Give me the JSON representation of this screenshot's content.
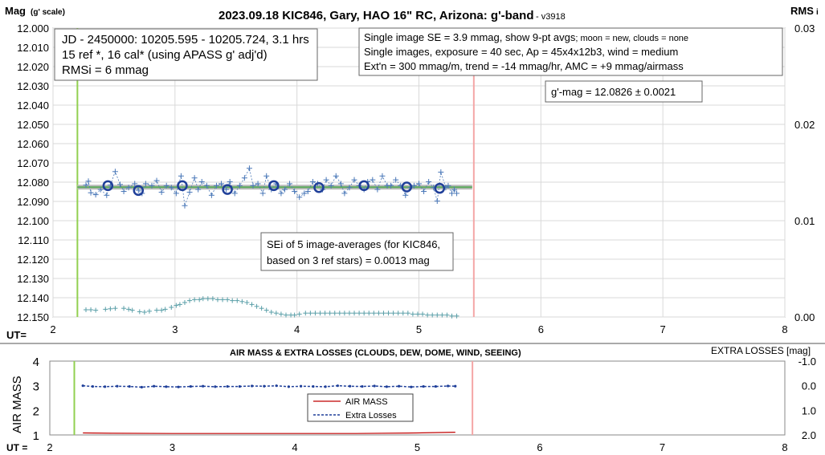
{
  "chart_data": [
    {
      "type": "scatter",
      "title": "2023.09.18 KIC846, Gary, HAO 16\" RC, Arizona: g'-band",
      "version": "- v3918",
      "ylabel": "Mag",
      "ylabel_suffix": "(g' scale)",
      "y2label": "RMS",
      "y2label_suffix": "i",
      "xlabel": "UT=",
      "xlim": [
        2,
        8
      ],
      "ylim": [
        12.0,
        12.15
      ],
      "y_inverted": true,
      "x_ticks": [
        2,
        3,
        4,
        5,
        6,
        7,
        8
      ],
      "y_ticks": [
        "12.000",
        "12.010",
        "12.020",
        "12.030",
        "12.040",
        "12.050",
        "12.060",
        "12.070",
        "12.080",
        "12.090",
        "12.100",
        "12.110",
        "12.120",
        "12.130",
        "12.140",
        "12.150"
      ],
      "y2lim": [
        0.0,
        0.03
      ],
      "y2_ticks": [
        "0.03",
        "0.02",
        "0.01",
        "0.00"
      ],
      "grid": true,
      "ut_start": 2.2,
      "ut_end": 5.45,
      "fit_mag": 12.0826,
      "series": [
        {
          "x": [
            2.27,
            2.29,
            2.31,
            2.35,
            2.39,
            2.44,
            2.47,
            2.51,
            2.55,
            2.58,
            2.62,
            2.67,
            2.7,
            2.73,
            2.76,
            2.81,
            2.85,
            2.89,
            2.93,
            2.97,
            3.01,
            3.05,
            3.08,
            3.12,
            3.16,
            3.19,
            3.22,
            3.26,
            3.3,
            3.34,
            3.38,
            3.42,
            3.45,
            3.49,
            3.53,
            3.57,
            3.61,
            3.64,
            3.68,
            3.72,
            3.75,
            3.79,
            3.83,
            3.87,
            3.9,
            3.94,
            3.98,
            4.02,
            4.06,
            4.09,
            4.13,
            4.17,
            4.21,
            4.24,
            4.28,
            4.32,
            4.36,
            4.39,
            4.43,
            4.47,
            4.51,
            4.55,
            4.58,
            4.62,
            4.66,
            4.7,
            4.74,
            4.77,
            4.81,
            4.85,
            4.89,
            4.93,
            4.96,
            5.0,
            5.04,
            5.08,
            5.12,
            5.15,
            5.18,
            5.22,
            5.24,
            5.27,
            5.29,
            5.31
          ],
          "values": [
            12.0815,
            12.0795,
            12.0855,
            12.0865,
            12.0838,
            12.0868,
            12.0815,
            12.0745,
            12.0812,
            12.0848,
            12.0828,
            12.0808,
            12.0842,
            12.0858,
            12.0808,
            12.0818,
            12.0792,
            12.0852,
            12.0818,
            12.0828,
            12.0858,
            12.0768,
            12.0922,
            12.0852,
            12.0778,
            12.0838,
            12.0798,
            12.0818,
            12.0868,
            12.0818,
            12.0808,
            12.0838,
            12.0798,
            12.0858,
            12.0818,
            12.0778,
            12.0728,
            12.0818,
            12.0808,
            12.0858,
            12.0768,
            12.0838,
            12.0808,
            12.0858,
            12.0838,
            12.0808,
            12.0848,
            12.0878,
            12.0858,
            12.0848,
            12.0798,
            12.0808,
            12.0838,
            12.0788,
            12.0818,
            12.0768,
            12.0808,
            12.0858,
            12.0828,
            12.0788,
            12.0818,
            12.0838,
            12.0798,
            12.0788,
            12.0838,
            12.0768,
            12.0818,
            12.0818,
            12.0788,
            12.0818,
            12.0868,
            12.0828,
            12.0818,
            12.0808,
            12.0848,
            12.0798,
            12.0828,
            12.0898,
            12.0748,
            12.0828,
            12.0818,
            12.0858,
            12.0838,
            12.0858
          ]
        },
        {
          "x": [
            2.45,
            2.7,
            3.06,
            3.43,
            3.81,
            4.18,
            4.55,
            4.9,
            5.17
          ],
          "values": [
            12.0818,
            12.0843,
            12.0818,
            12.0838,
            12.0818,
            12.0828,
            12.0818,
            12.0825,
            12.0832
          ]
        },
        {
          "x": [
            2.27,
            2.31,
            2.35,
            2.43,
            2.47,
            2.51,
            2.58,
            2.62,
            2.65,
            2.71,
            2.75,
            2.79,
            2.85,
            2.89,
            2.92,
            2.97,
            3.01,
            3.04,
            3.08,
            3.12,
            3.16,
            3.2,
            3.23,
            3.27,
            3.31,
            3.35,
            3.39,
            3.43,
            3.47,
            3.51,
            3.55,
            3.59,
            3.63,
            3.67,
            3.71,
            3.75,
            3.79,
            3.83,
            3.87,
            3.91,
            3.95,
            3.98,
            4.02,
            4.07,
            4.11,
            4.15,
            4.19,
            4.23,
            4.27,
            4.31,
            4.35,
            4.39,
            4.43,
            4.47,
            4.51,
            4.55,
            4.59,
            4.63,
            4.67,
            4.71,
            4.75,
            4.79,
            4.83,
            4.87,
            4.91,
            4.95,
            4.99,
            5.03,
            5.07,
            5.11,
            5.15,
            5.19,
            5.23,
            5.27,
            5.31
          ],
          "values": [
            0.00075,
            0.00075,
            0.0007,
            0.0008,
            0.00085,
            0.0009,
            0.0009,
            0.0008,
            0.0007,
            0.00055,
            0.0005,
            0.0006,
            0.0007,
            0.0007,
            0.0008,
            0.001,
            0.0012,
            0.0013,
            0.0015,
            0.0017,
            0.0018,
            0.0018,
            0.0019,
            0.0019,
            0.0019,
            0.0018,
            0.0018,
            0.0018,
            0.0017,
            0.0017,
            0.0016,
            0.0015,
            0.0013,
            0.0011,
            0.0009,
            0.0007,
            0.0005,
            0.0004,
            0.0003,
            0.0002,
            0.0002,
            0.0002,
            0.0003,
            0.0004,
            0.0004,
            0.0004,
            0.0004,
            0.0004,
            0.0004,
            0.0004,
            0.0004,
            0.0004,
            0.0004,
            0.0004,
            0.0004,
            0.0004,
            0.0004,
            0.0004,
            0.0004,
            0.0004,
            0.0004,
            0.0004,
            0.0004,
            0.0004,
            0.0004,
            0.0003,
            0.0003,
            0.0003,
            0.0002,
            0.0002,
            0.0002,
            0.0002,
            0.0002,
            0.0001,
            0.0001
          ]
        }
      ],
      "annotations": {
        "box1": [
          "JD - 2450000: 10205.595 - 10205.724, 3.1 hrs",
          "15 ref *, 16 cal* (using APASS g' adj'd)",
          "RMSi = 6 mmag"
        ],
        "box2_line1": "Single image SE = 3.9 mmag, show  9-pt avgs",
        "box2_line1_small": "; moon = new, clouds = none",
        "box2_line2": "Single images, exposure = 40 sec, Ap = 45x4x12b3, wind = medium",
        "box2_line3": "Ext'n = 300 mmag/m, trend = -14 mmag/hr, AMC = +9 mmag/airmass",
        "box3": "g'-mag = 12.0826 ± 0.0021",
        "box4": [
          "SEi of 5 image-averages (for KIC846,",
          "based on 3 ref stars) = 0.0013 mag"
        ]
      },
      "colors": {
        "single": "#4a78b8",
        "avg": "#1f3f99",
        "rms": "#5a9fa8",
        "fit": "#5aaa5a",
        "start": "#92d050",
        "end": "#f4a6a6"
      }
    },
    {
      "type": "line",
      "title": "AIR MASS & EXTRA LOSSES (CLOUDS, DEW, DOME, WIND, SEEING)",
      "ylabel": "AIR MASS",
      "y2label": "EXTRA LOSSES [mag]",
      "xlabel": "UT =",
      "xlim": [
        2,
        8
      ],
      "ylim": [
        1,
        4
      ],
      "x_ticks": [
        2,
        3,
        4,
        5,
        6,
        7,
        8
      ],
      "y_ticks": [
        1,
        2,
        3,
        4
      ],
      "y2lim": [
        2.0,
        -1.0
      ],
      "y2_ticks": [
        "-1.0",
        "0.0",
        "1.0",
        "2.0"
      ],
      "legend": [
        "AIR MASS",
        "Extra Losses"
      ],
      "legend_position": "center",
      "series": [
        {
          "name": "AIR MASS",
          "x": [
            2.27,
            2.5,
            3.0,
            3.5,
            4.0,
            4.5,
            5.0,
            5.31
          ],
          "values": [
            1.08,
            1.07,
            1.06,
            1.06,
            1.06,
            1.06,
            1.08,
            1.11
          ]
        },
        {
          "name": "Extra Losses",
          "x": [
            2.27,
            2.35,
            2.45,
            2.55,
            2.65,
            2.75,
            2.85,
            2.95,
            3.05,
            3.15,
            3.25,
            3.35,
            3.45,
            3.55,
            3.65,
            3.75,
            3.85,
            3.95,
            4.05,
            4.15,
            4.25,
            4.35,
            4.45,
            4.55,
            4.65,
            4.75,
            4.85,
            4.95,
            5.05,
            5.15,
            5.25,
            5.31
          ],
          "values": [
            0.0,
            0.03,
            0.04,
            0.02,
            0.03,
            0.06,
            0.02,
            0.04,
            0.05,
            0.03,
            0.02,
            0.04,
            0.03,
            0.03,
            0.01,
            0.02,
            0.0,
            0.04,
            0.02,
            0.03,
            0.04,
            0.0,
            0.02,
            0.03,
            0.01,
            0.04,
            0.02,
            0.05,
            0.03,
            0.03,
            0.01,
            0.02
          ]
        }
      ],
      "colors": {
        "airmass": "#c00000",
        "extra": "#1f3f99",
        "start": "#92d050",
        "end": "#f4a6a6"
      }
    }
  ]
}
